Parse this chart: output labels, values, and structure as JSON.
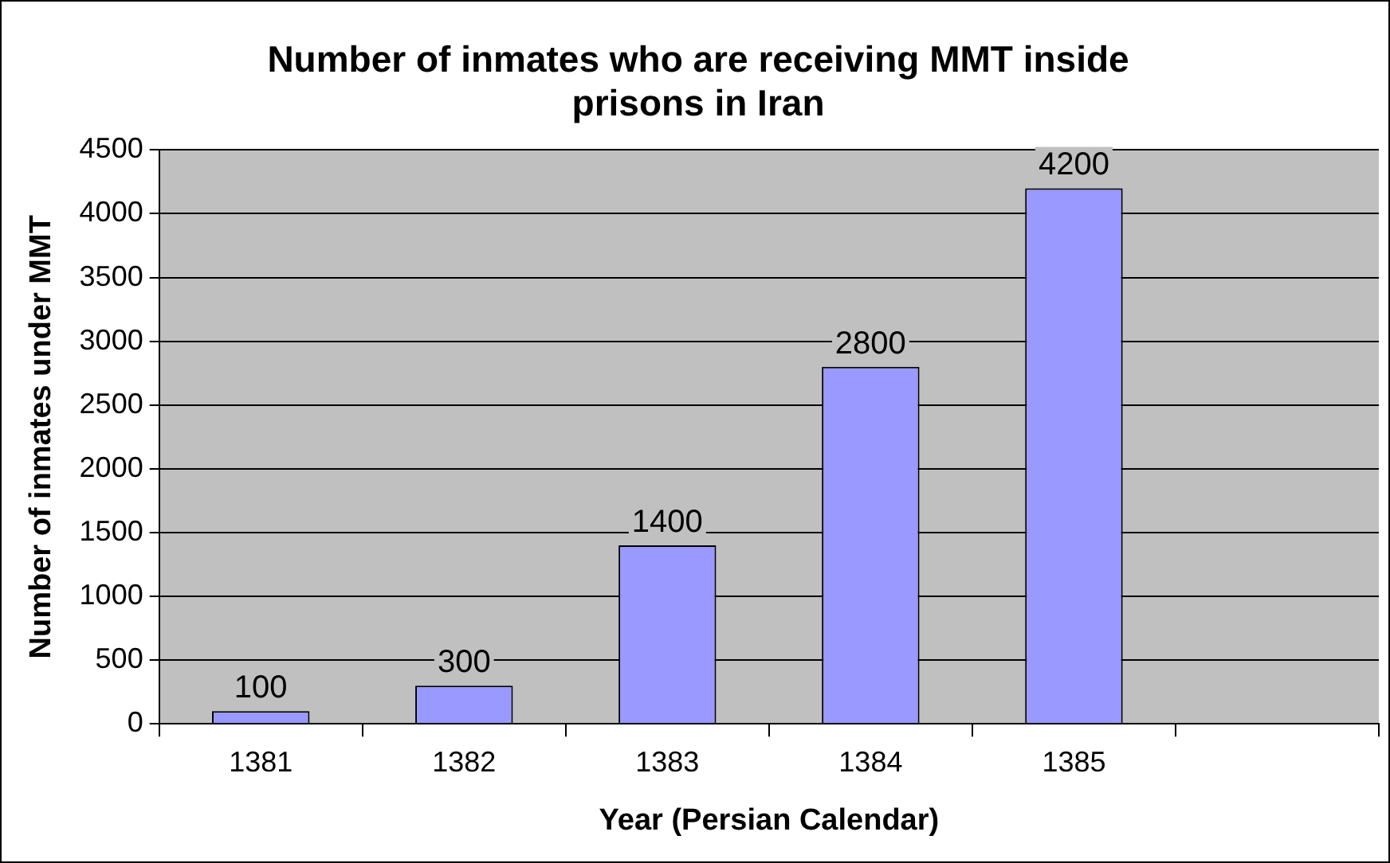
{
  "chart_data": {
    "type": "bar",
    "title": "Number of inmates who are receiving MMT inside prisons in Iran",
    "xlabel": "Year (Persian Calendar)",
    "ylabel": "Number of inmates under MMT",
    "categories": [
      "1381",
      "1382",
      "1383",
      "1384",
      "1385",
      null
    ],
    "values": [
      100,
      300,
      1400,
      2800,
      4200,
      null
    ],
    "color": "#9999ff",
    "ylim": [
      0,
      4500
    ],
    "yticks": [
      0,
      500,
      1000,
      1500,
      2000,
      2500,
      3000,
      3500,
      4000,
      4500
    ],
    "grid": "y",
    "legend": false,
    "data_labels": true
  }
}
